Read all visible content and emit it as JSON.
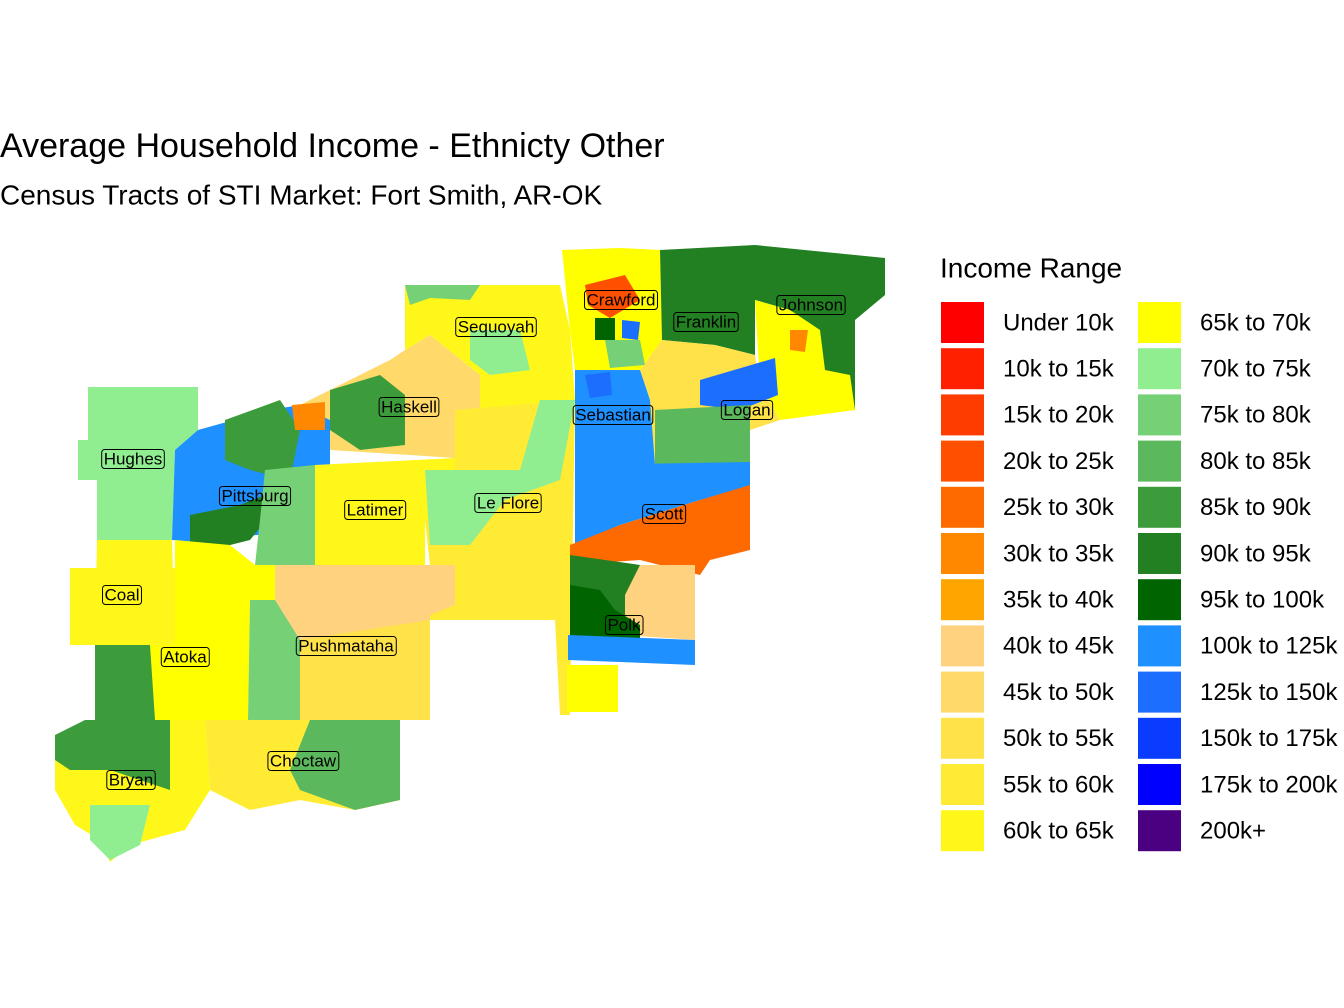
{
  "title": "Average Household Income - Ethnicty Other",
  "subtitle": "Census Tracts of STI Market: Fort Smith, AR-OK",
  "legend": {
    "title": "Income Range",
    "items": [
      {
        "label": "Under 10k",
        "color": "#FF0000"
      },
      {
        "label": "10k to 15k",
        "color": "#FF2000"
      },
      {
        "label": "15k to 20k",
        "color": "#FF3C00"
      },
      {
        "label": "20k to 25k",
        "color": "#FF5000"
      },
      {
        "label": "25k to 30k",
        "color": "#FF6A00"
      },
      {
        "label": "30k to 35k",
        "color": "#FF8800"
      },
      {
        "label": "35k to 40k",
        "color": "#FFA500"
      },
      {
        "label": "40k to 45k",
        "color": "#FFD27F"
      },
      {
        "label": "45k to 50k",
        "color": "#FFDA6A"
      },
      {
        "label": "50k to 55k",
        "color": "#FFE24A"
      },
      {
        "label": "55k to 60k",
        "color": "#FFEB33"
      },
      {
        "label": "60k to 65k",
        "color": "#FFF71A"
      },
      {
        "label": "65k to 70k",
        "color": "#FFFF00"
      },
      {
        "label": "70k to 75k",
        "color": "#90EE90"
      },
      {
        "label": "75k to 80k",
        "color": "#76D176"
      },
      {
        "label": "80k to 85k",
        "color": "#5CB85C"
      },
      {
        "label": "85k to 90k",
        "color": "#3C9C3C"
      },
      {
        "label": "90k to 95k",
        "color": "#228022"
      },
      {
        "label": "95k to 100k",
        "color": "#006400"
      },
      {
        "label": "100k to 125k",
        "color": "#1E90FF"
      },
      {
        "label": "125k to 150k",
        "color": "#1C6EFF"
      },
      {
        "label": "150k to 175k",
        "color": "#0A3CFF"
      },
      {
        "label": "175k to 200k",
        "color": "#0000FF"
      },
      {
        "label": "200k+",
        "color": "#4B0082"
      }
    ]
  },
  "counties": [
    {
      "label": "Crawford"
    },
    {
      "label": "Franklin"
    },
    {
      "label": "Johnson"
    },
    {
      "label": "Sequoyah"
    },
    {
      "label": "Haskell"
    },
    {
      "label": "Sebastian"
    },
    {
      "label": "Logan"
    },
    {
      "label": "Hughes"
    },
    {
      "label": "Pittsburg"
    },
    {
      "label": "Latimer"
    },
    {
      "label": "Le Flore"
    },
    {
      "label": "Scott"
    },
    {
      "label": "Coal"
    },
    {
      "label": "Polk"
    },
    {
      "label": "Atoka"
    },
    {
      "label": "Pushmataha"
    },
    {
      "label": "Choctaw"
    },
    {
      "label": "Bryan"
    }
  ]
}
